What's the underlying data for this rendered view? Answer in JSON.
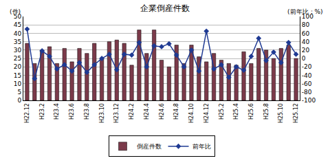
{
  "chart_data": {
    "type": "bar",
    "title": "企業倒産件数",
    "ylabel": "(件)",
    "y2label": "(前年比：%)",
    "categories": [
      "H22.12",
      null,
      "H23.2",
      null,
      "H23.4",
      null,
      "H23.6",
      null,
      "H23.8",
      null,
      "H23.10",
      null,
      "H23.12",
      null,
      "H24.2",
      null,
      "H24.4",
      null,
      "H24.6",
      null,
      "H24.8",
      null,
      "H24.10",
      null,
      "H24.12",
      null,
      "H25.2",
      null,
      "H25.4",
      null,
      "H25.6",
      null,
      "H25.8",
      null,
      "H25.10",
      null,
      "H25.12"
    ],
    "series": [
      {
        "name": "倒産件数",
        "type": "bar",
        "color": "#7b3a4a",
        "values": [
          34,
          22,
          30,
          32,
          22,
          31,
          23,
          31,
          28,
          34,
          25,
          35,
          36,
          34,
          21,
          42,
          28,
          42,
          24,
          20,
          33,
          22,
          33,
          26,
          23,
          28,
          24,
          22,
          21,
          29,
          22,
          31,
          30,
          25,
          31,
          33,
          25
        ]
      },
      {
        "name": "前年比",
        "type": "line",
        "axis": "y2",
        "color": "#1f3a93",
        "marker": "diamond",
        "values": [
          70,
          -48,
          18,
          5,
          -25,
          -15,
          -30,
          -10,
          -33,
          -15,
          0,
          10,
          -27,
          10,
          8,
          38,
          -20,
          30,
          28,
          35,
          8,
          -20,
          20,
          -30,
          65,
          -25,
          -15,
          -45,
          -20,
          -28,
          5,
          48,
          -5,
          15,
          -10,
          38,
          10
        ]
      }
    ],
    "ylim": [
      0,
      50
    ],
    "yticks": [
      0,
      5,
      10,
      15,
      20,
      25,
      30,
      35,
      40,
      45,
      50
    ],
    "y2lim": [
      -100,
      100
    ],
    "y2ticks": [
      -100,
      -80,
      -60,
      -40,
      -20,
      0,
      20,
      40,
      60,
      80,
      100
    ],
    "grid": true,
    "legend": "bottom"
  }
}
